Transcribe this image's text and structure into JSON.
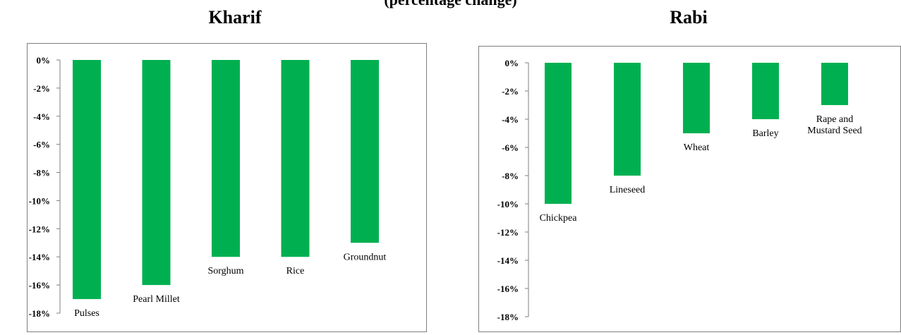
{
  "heading": "(percentage change)",
  "chart_data": [
    {
      "type": "bar",
      "title": "Kharif",
      "categories": [
        "Pulses",
        "Pearl Millet",
        "Sorghum",
        "Rice",
        "Groundnut"
      ],
      "values": [
        -17,
        -16,
        -14,
        -14,
        -13
      ],
      "ylim": [
        -18,
        0
      ],
      "yticks": [
        "0%",
        "-2%",
        "-4%",
        "-6%",
        "-8%",
        "-10%",
        "-12%",
        "-14%",
        "-16%",
        "-18%"
      ],
      "xlabel": "",
      "ylabel": "",
      "bar_color": "#00b050",
      "grid": false
    },
    {
      "type": "bar",
      "title": "Rabi",
      "categories": [
        [
          "Chickpea"
        ],
        [
          "Lineseed"
        ],
        [
          "Wheat"
        ],
        [
          "Barley"
        ],
        [
          "Rape and",
          "Mustard Seed"
        ]
      ],
      "values": [
        -10,
        -8,
        -5,
        -4,
        -3
      ],
      "ylim": [
        -18,
        0
      ],
      "yticks": [
        "0%",
        "-2%",
        "-4%",
        "-6%",
        "-8%",
        "-10%",
        "-12%",
        "-14%",
        "-16%",
        "-18%"
      ],
      "xlabel": "",
      "ylabel": "",
      "bar_color": "#00b050",
      "grid": false
    }
  ]
}
